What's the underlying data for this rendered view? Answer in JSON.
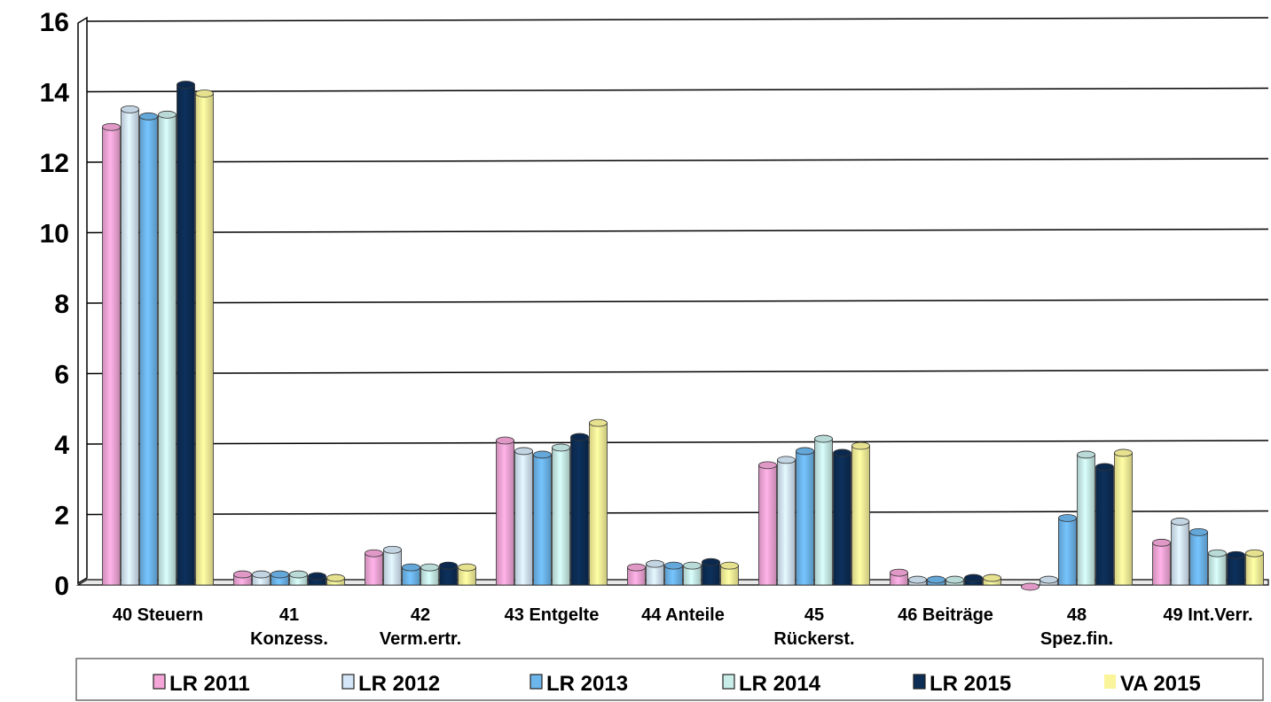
{
  "chart_data": {
    "type": "bar",
    "categories": [
      [
        "40 Steuern"
      ],
      [
        "41",
        "Konzess."
      ],
      [
        "42",
        "Verm.ertr."
      ],
      [
        "43 Entgelte"
      ],
      [
        "44 Anteile"
      ],
      [
        "45",
        "Rückerst."
      ],
      [
        "46 Beiträge"
      ],
      [
        "48",
        "Spez.fin."
      ],
      [
        "49 Int.Verr."
      ]
    ],
    "series": [
      {
        "name": "LR 2011",
        "color": "#F4A6D8",
        "values": [
          13.0,
          0.3,
          0.9,
          4.1,
          0.5,
          3.4,
          0.35,
          -0.05,
          1.2
        ]
      },
      {
        "name": "LR 2012",
        "color": "#D4E6F7",
        "values": [
          13.5,
          0.3,
          1.0,
          3.8,
          0.6,
          3.55,
          0.15,
          0.15,
          1.8
        ]
      },
      {
        "name": "LR 2013",
        "color": "#6DB6EC",
        "values": [
          13.3,
          0.3,
          0.5,
          3.7,
          0.55,
          3.8,
          0.15,
          1.9,
          1.5
        ]
      },
      {
        "name": "LR 2014",
        "color": "#C9EDE9",
        "values": [
          13.35,
          0.3,
          0.5,
          3.9,
          0.55,
          4.15,
          0.15,
          3.7,
          0.9
        ]
      },
      {
        "name": "LR 2015",
        "color": "#0C2D55",
        "values": [
          14.2,
          0.25,
          0.55,
          4.2,
          0.65,
          3.75,
          0.2,
          3.35,
          0.85
        ]
      },
      {
        "name": "VA 2015",
        "color": "#FAF59A",
        "values": [
          13.95,
          0.2,
          0.5,
          4.6,
          0.55,
          3.95,
          0.2,
          3.75,
          0.9
        ]
      }
    ],
    "xlabel": "",
    "ylabel": "",
    "ylim": [
      0,
      16
    ],
    "yticks": [
      0,
      2,
      4,
      6,
      8,
      10,
      12,
      14,
      16
    ],
    "grid": true,
    "legend_position": "bottom"
  }
}
